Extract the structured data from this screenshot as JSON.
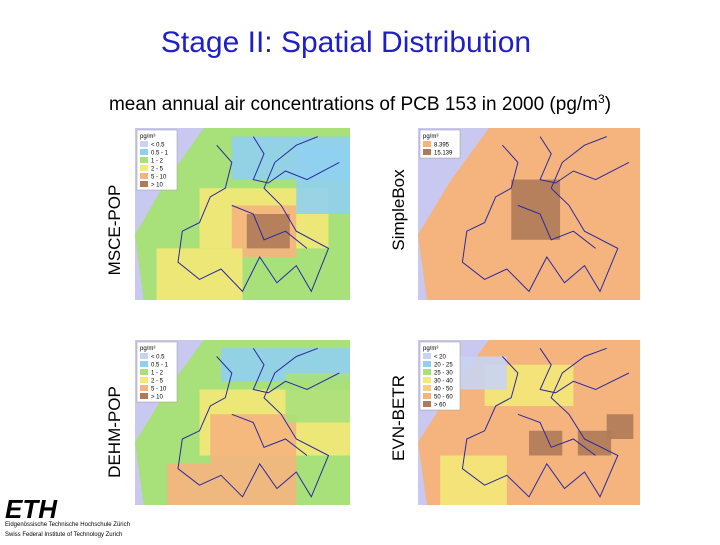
{
  "title": "Stage II: Spatial Distribution",
  "subtitle": {
    "text": "mean annual air concentrations of PCB 153 in 2000 (pg/m",
    "sup": "3",
    "end": ")"
  },
  "panels": [
    {
      "label": "MSCE-POP",
      "legend": {
        "unit": "pg/m³",
        "items": [
          "< 0.5",
          "0.5 - 1",
          "1 - 2",
          "2 - 5",
          "5 - 10",
          "> 10"
        ]
      }
    },
    {
      "label": "SimpleBox",
      "legend": {
        "unit": "pg/m³",
        "items": [
          "8.395",
          "15.139"
        ]
      }
    },
    {
      "label": "DEHM-POP",
      "legend": {
        "unit": "pg/m³",
        "items": [
          "< 0.5",
          "0.5 - 1",
          "1 - 2",
          "2 - 5",
          "5 - 10",
          "> 10"
        ]
      }
    },
    {
      "label": "EVN-BETR",
      "legend": {
        "unit": "pg/m³",
        "items": [
          "< 20",
          "20 - 25",
          "25 - 30",
          "30 - 40",
          "40 - 50",
          "50 - 60",
          "> 60"
        ]
      }
    }
  ],
  "logo": {
    "name": "ETH",
    "line1": "Eidgenössische Technische Hochschule Zürich",
    "line2": "Swiss Federal Institute of Technology Zurich"
  }
}
